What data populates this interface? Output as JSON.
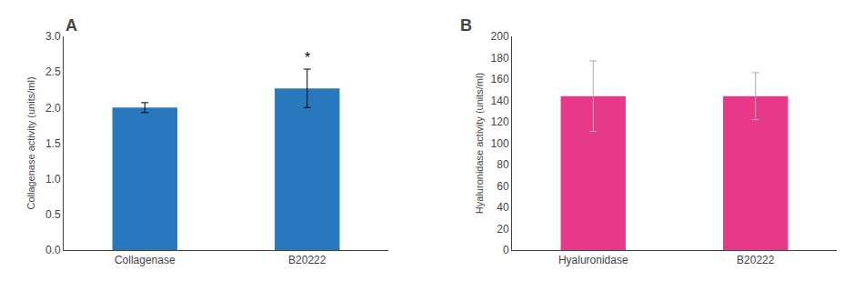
{
  "chart_data": [
    {
      "type": "bar",
      "title": "A",
      "categories": [
        "Collagenase",
        "B20222"
      ],
      "values": [
        2.0,
        2.27
      ],
      "errors": [
        0.07,
        0.27
      ],
      "color": "#2878BE",
      "ylabel": "Collagenase activity (units/ml)",
      "ylim": [
        0,
        3.0
      ],
      "yticks": [
        {
          "value": 0,
          "label": "0.0"
        },
        0.5,
        {
          "value": 1,
          "label": "1.0"
        },
        1.5,
        {
          "value": 2,
          "label": "2.0"
        },
        2.5,
        {
          "value": 3,
          "label": "3.0"
        }
      ],
      "annotations": [
        {
          "text": "*",
          "category": "B20222"
        }
      ],
      "grid": false
    },
    {
      "type": "bar",
      "title": "B",
      "categories": [
        "Hyaluronidase",
        "B20222"
      ],
      "values": [
        144,
        144
      ],
      "errors": [
        33,
        22
      ],
      "color": "#E8388A",
      "error_color": "#aaaaaa",
      "ylabel": "Hyaluronidase activity (units/ml)",
      "ylim": [
        0,
        200
      ],
      "yticks": [
        0,
        20,
        40,
        60,
        80,
        100,
        120,
        140,
        160,
        180,
        200
      ],
      "grid": false
    }
  ]
}
